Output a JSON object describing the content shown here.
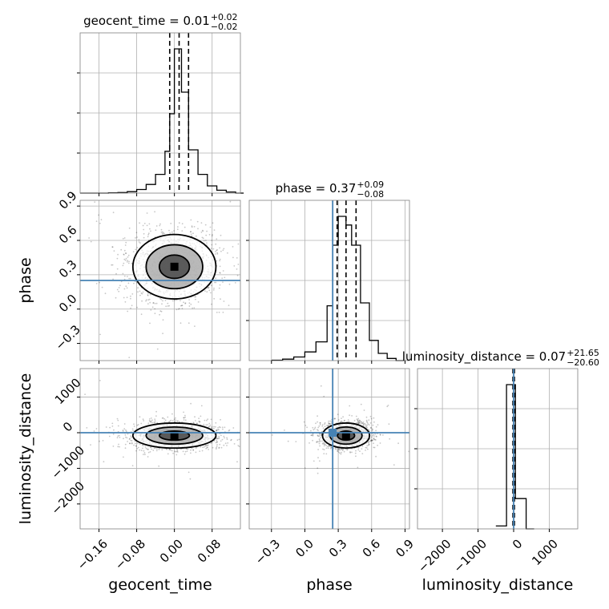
{
  "chart_data": {
    "type": "corner",
    "parameters": [
      "geocent_time",
      "phase",
      "luminosity_distance"
    ],
    "truths": {
      "geocent_time": null,
      "phase": 0.25,
      "luminosity_distance": 0
    },
    "truth_color": "#4682b4",
    "grid": true,
    "diagonal": [
      {
        "param": "geocent_time",
        "title_main": "geocent_time = 0.01",
        "title_plus": "+0.02",
        "title_minus": "−0.02",
        "xlim": [
          -0.2,
          0.14
        ],
        "quantiles": [
          -0.01,
          0.01,
          0.03
        ],
        "bins": [
          [
            -0.2,
            0.0
          ],
          [
            -0.18,
            0.0
          ],
          [
            -0.16,
            0.0
          ],
          [
            -0.14,
            0.002
          ],
          [
            -0.12,
            0.004
          ],
          [
            -0.1,
            0.01
          ],
          [
            -0.08,
            0.025
          ],
          [
            -0.06,
            0.06
          ],
          [
            -0.04,
            0.13
          ],
          [
            -0.02,
            0.29
          ],
          [
            -0.01,
            0.55
          ],
          [
            0.0,
            1.0
          ],
          [
            0.015,
            0.7
          ],
          [
            0.03,
            0.3
          ],
          [
            0.05,
            0.13
          ],
          [
            0.07,
            0.05
          ],
          [
            0.09,
            0.02
          ],
          [
            0.11,
            0.008
          ],
          [
            0.13,
            0.0
          ]
        ]
      },
      {
        "param": "phase",
        "title_main": "phase = 0.37",
        "title_plus": "+0.09",
        "title_minus": "−0.08",
        "xlim": [
          -0.5,
          0.94
        ],
        "quantiles": [
          0.29,
          0.37,
          0.46
        ],
        "bins": [
          [
            -0.3,
            0.003
          ],
          [
            -0.2,
            0.01
          ],
          [
            -0.1,
            0.025
          ],
          [
            0.0,
            0.06
          ],
          [
            0.1,
            0.13
          ],
          [
            0.2,
            0.38
          ],
          [
            0.25,
            0.8
          ],
          [
            0.3,
            1.0
          ],
          [
            0.37,
            0.94
          ],
          [
            0.42,
            0.8
          ],
          [
            0.5,
            0.4
          ],
          [
            0.58,
            0.14
          ],
          [
            0.66,
            0.05
          ],
          [
            0.74,
            0.015
          ],
          [
            0.82,
            0.0
          ]
        ]
      },
      {
        "param": "luminosity_distance",
        "title_main": "luminosity_distance = 0.07",
        "title_plus": "+21.65",
        "title_minus": "−20.60",
        "xlim": [
          -2700,
          1800
        ],
        "quantiles": [
          -20.53,
          0.07,
          21.72
        ],
        "bins": [
          [
            -500,
            0.02
          ],
          [
            -200,
            1.0
          ],
          [
            50,
            0.21
          ],
          [
            350,
            0.0
          ]
        ]
      }
    ],
    "lower": [
      {
        "x": "geocent_time",
        "y": "phase",
        "xlim": [
          -0.2,
          0.14
        ],
        "ylim": [
          -0.45,
          0.95
        ],
        "center": [
          0.0,
          0.37
        ],
        "spread": [
          0.05,
          0.16
        ],
        "contour_levels": [
          0.4,
          0.75,
          1.1
        ]
      },
      {
        "x": "geocent_time",
        "y": "luminosity_distance",
        "xlim": [
          -0.2,
          0.14
        ],
        "ylim": [
          -2700,
          1800
        ],
        "center": [
          0.0,
          -80
        ],
        "spread": [
          0.05,
          200
        ],
        "contour_levels": [
          0.4,
          0.75,
          1.1
        ]
      },
      {
        "x": "phase",
        "y": "luminosity_distance",
        "xlim": [
          -0.5,
          0.94
        ],
        "ylim": [
          -2700,
          1800
        ],
        "center": [
          0.37,
          -80
        ],
        "spread": [
          0.12,
          200
        ],
        "contour_levels": [
          0.4,
          0.75,
          1.1
        ]
      }
    ],
    "axes": {
      "geocent_time": {
        "ticks": [
          -0.16,
          -0.08,
          0.0,
          0.08
        ],
        "tick_labels": [
          "−0.16",
          "−0.08",
          "0.00",
          "0.08"
        ],
        "label": "geocent_time"
      },
      "phase": {
        "ticks": [
          -0.3,
          0.0,
          0.3,
          0.6,
          0.9
        ],
        "tick_labels": [
          "−0.3",
          "0.0",
          "0.3",
          "0.6",
          "0.9"
        ],
        "label": "phase"
      },
      "luminosity_distance": {
        "ticks": [
          -2000,
          -1000,
          0,
          1000
        ],
        "tick_labels": [
          "−2000",
          "−1000",
          "0",
          "1000"
        ],
        "label": "luminosity_distance"
      }
    }
  }
}
